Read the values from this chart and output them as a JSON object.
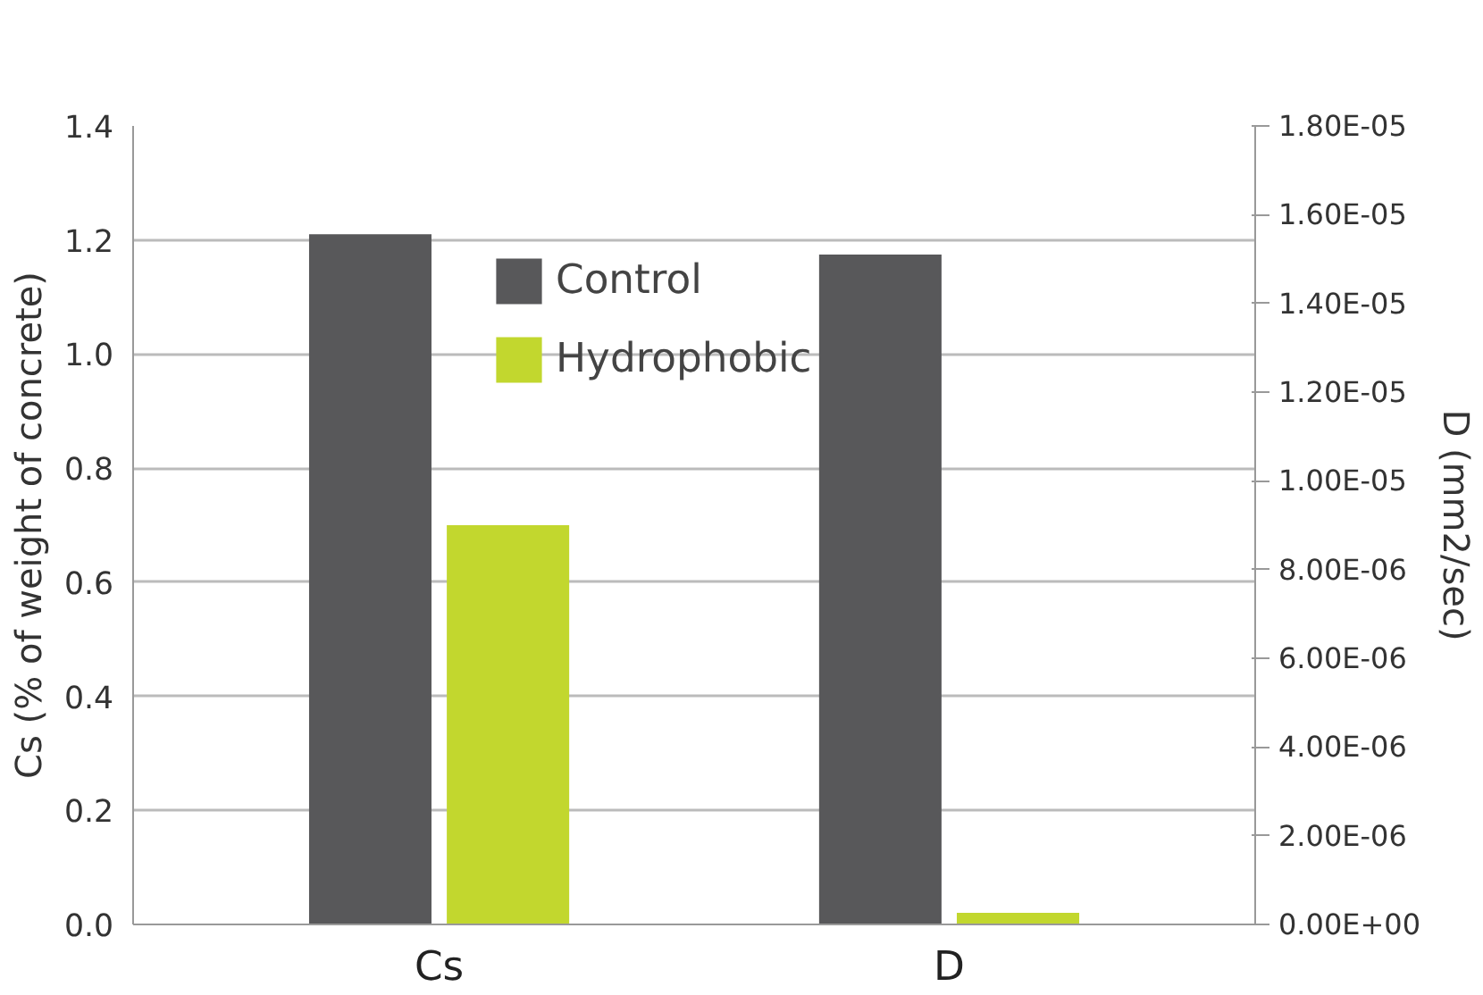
{
  "chart_data": {
    "type": "bar",
    "categories": [
      "Cs",
      "D"
    ],
    "series": [
      {
        "name": "Control",
        "color": "#58585a",
        "values": [
          1.21,
          null
        ]
      },
      {
        "name": "Hydrophobic",
        "color": "#c2d72e",
        "values": [
          0.7,
          null
        ]
      },
      {
        "color": "#58585a",
        "values": [
          null,
          1.51e-05
        ],
        "axis": "y2"
      },
      {
        "color": "#c2d72e",
        "values": [
          null,
          2.6e-07
        ],
        "axis": "y2"
      }
    ],
    "ylabel": "Cs (% of weight of concrete)",
    "y2label": "D (mm2/sec)",
    "ylim": [
      0,
      1.4
    ],
    "yticks": [
      {
        "value": 0,
        "label": "0.0"
      },
      {
        "value": 0.2,
        "label": "0.2"
      },
      {
        "value": 0.4,
        "label": "0.4"
      },
      {
        "value": 0.6,
        "label": "0.6"
      },
      {
        "value": 0.8,
        "label": "0.8"
      },
      {
        "value": 1.0,
        "label": "1.0"
      },
      {
        "value": 1.2,
        "label": "1.2"
      },
      {
        "value": 1.4,
        "label": "1.4"
      }
    ],
    "y2lim": [
      0,
      1.8e-05
    ],
    "y2ticks": [
      {
        "value": 0,
        "label": "0.00E+00"
      },
      {
        "value": 2e-06,
        "label": "2.00E-06"
      },
      {
        "value": 4e-06,
        "label": "4.00E-06"
      },
      {
        "value": 6e-06,
        "label": "6.00E-06"
      },
      {
        "value": 8e-06,
        "label": "8.00E-06"
      },
      {
        "value": 1e-05,
        "label": "1.00E-05"
      },
      {
        "value": 1.2e-05,
        "label": "1.20E-05"
      },
      {
        "value": 1.4e-05,
        "label": "1.40E-05"
      },
      {
        "value": 1.6e-05,
        "label": "1.60E-05"
      },
      {
        "value": 1.8e-05,
        "label": "1.80E-05"
      }
    ],
    "grid": "y",
    "legend": "top"
  }
}
